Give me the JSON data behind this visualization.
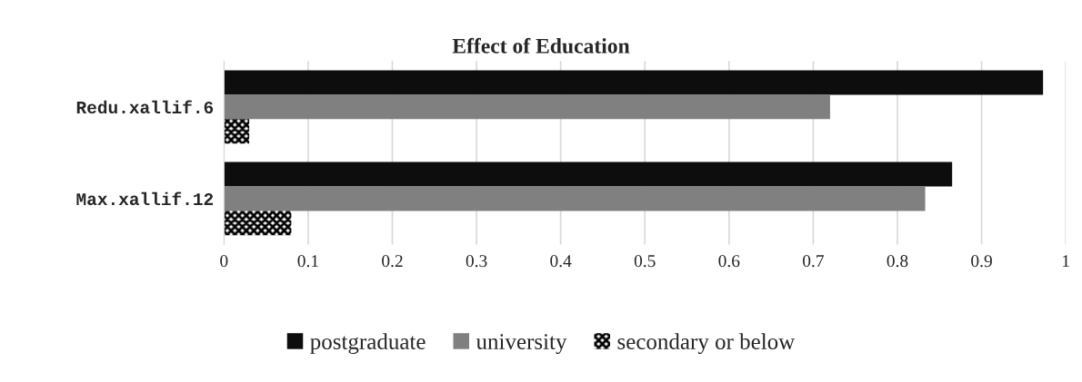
{
  "chart_data": {
    "type": "bar",
    "orientation": "horizontal",
    "title": "Effect of Education",
    "categories": [
      "Redu.xallif.6",
      "Max.xallif.12"
    ],
    "series": [
      {
        "name": "postgraduate",
        "color": "#0d0d0d",
        "values": [
          0.973,
          0.865
        ]
      },
      {
        "name": "university",
        "color": "#808080",
        "values": [
          0.72,
          0.833
        ]
      },
      {
        "name": "secondary or below",
        "color": "#000000",
        "values": [
          0.03,
          0.08
        ]
      }
    ],
    "xlim": [
      0,
      1
    ],
    "xticks": [
      0,
      0.1,
      0.2,
      0.3,
      0.4,
      0.5,
      0.6,
      0.7,
      0.8,
      0.9,
      1
    ],
    "grid": "x",
    "legend": "bottom"
  }
}
